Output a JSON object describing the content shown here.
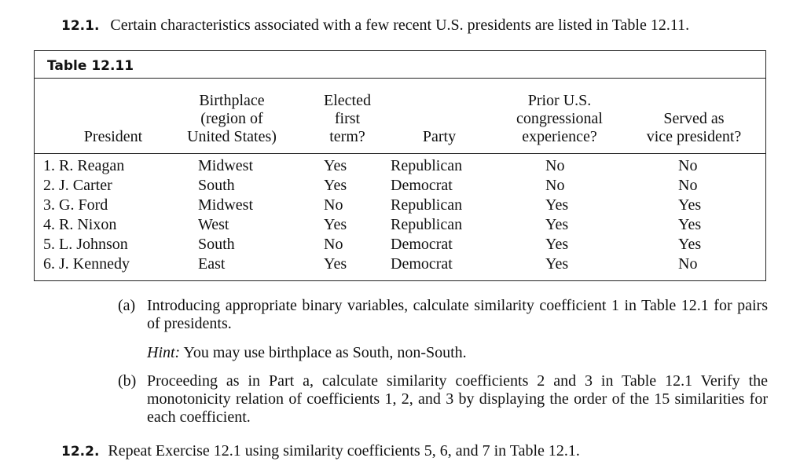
{
  "exercise1": {
    "number": "12.1.",
    "text": "Certain characteristics associated with a few recent U.S. presidents are listed in Table 12.11."
  },
  "table": {
    "title": "Table 12.11",
    "headers": [
      [
        "President"
      ],
      [
        "Birthplace",
        "(region of",
        "United States)"
      ],
      [
        "Elected",
        "first",
        "term?"
      ],
      [
        "Party"
      ],
      [
        "Prior U.S.",
        "congressional",
        "experience?"
      ],
      [
        "Served as",
        "vice president?"
      ]
    ],
    "rows": [
      [
        "1. R. Reagan",
        "Midwest",
        "Yes",
        "Republican",
        "No",
        "No"
      ],
      [
        "2. J. Carter",
        "South",
        "Yes",
        "Democrat",
        "No",
        "No"
      ],
      [
        "3. G. Ford",
        "Midwest",
        "No",
        "Republican",
        "Yes",
        "Yes"
      ],
      [
        "4. R. Nixon",
        "West",
        "Yes",
        "Republican",
        "Yes",
        "Yes"
      ],
      [
        "5. L. Johnson",
        "South",
        "No",
        "Democrat",
        "Yes",
        "Yes"
      ],
      [
        "6. J. Kennedy",
        "East",
        "Yes",
        "Democrat",
        "Yes",
        "No"
      ]
    ]
  },
  "part_a": {
    "label": "(a)",
    "text": "Introducing appropriate binary variables, calculate similarity coefficient 1 in Table 12.1 for pairs of presidents.",
    "hint_label": "Hint:",
    "hint_text": "You may use birthplace as South, non-South."
  },
  "part_b": {
    "label": "(b)",
    "text": "Proceeding as in Part a, calculate similarity coefficients 2 and 3 in Table 12.1 Verify the monotonicity relation of coefficients 1, 2, and 3 by displaying the order of the 15 similarities for each coefficient."
  },
  "exercise2": {
    "number": "12.2.",
    "text": "Repeat Exercise 12.1 using similarity coefficients 5, 6, and 7 in Table 12.1."
  }
}
